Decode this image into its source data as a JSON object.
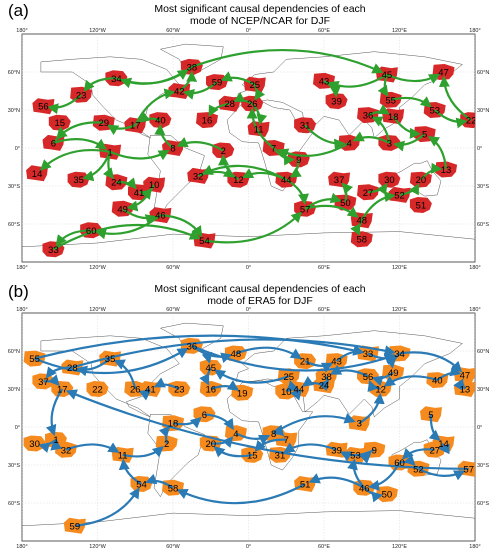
{
  "panels": [
    {
      "label": "(a)",
      "title_line1": "Most significant causal dependencies of each",
      "title_line2": "mode of NCEP/NCAR for DJF",
      "blob_color": "#d62828",
      "arrow_color": "#2ea02e",
      "nodes": [
        {
          "id": "38",
          "lon": -45,
          "lat": 64
        },
        {
          "id": "47",
          "lon": 155,
          "lat": 60
        },
        {
          "id": "45",
          "lon": 110,
          "lat": 58
        },
        {
          "id": "34",
          "lon": -105,
          "lat": 55
        },
        {
          "id": "43",
          "lon": 60,
          "lat": 53
        },
        {
          "id": "25",
          "lon": 5,
          "lat": 50
        },
        {
          "id": "59",
          "lon": -25,
          "lat": 52
        },
        {
          "id": "23",
          "lon": -133,
          "lat": 42
        },
        {
          "id": "42",
          "lon": -55,
          "lat": 45
        },
        {
          "id": "39",
          "lon": 70,
          "lat": 37
        },
        {
          "id": "55",
          "lon": 113,
          "lat": 38
        },
        {
          "id": "28",
          "lon": -15,
          "lat": 35
        },
        {
          "id": "26",
          "lon": 3,
          "lat": 35
        },
        {
          "id": "53",
          "lon": 148,
          "lat": 30
        },
        {
          "id": "56",
          "lon": -163,
          "lat": 33
        },
        {
          "id": "22",
          "lon": 177,
          "lat": 22
        },
        {
          "id": "36",
          "lon": 95,
          "lat": 26
        },
        {
          "id": "18",
          "lon": 115,
          "lat": 25
        },
        {
          "id": "15",
          "lon": -150,
          "lat": 20
        },
        {
          "id": "29",
          "lon": -115,
          "lat": 20
        },
        {
          "id": "17",
          "lon": -90,
          "lat": 18
        },
        {
          "id": "40",
          "lon": -70,
          "lat": 22
        },
        {
          "id": "16",
          "lon": -33,
          "lat": 22
        },
        {
          "id": "11",
          "lon": 8,
          "lat": 15
        },
        {
          "id": "31",
          "lon": 45,
          "lat": 18
        },
        {
          "id": "5",
          "lon": 140,
          "lat": 11
        },
        {
          "id": "6",
          "lon": -155,
          "lat": 4
        },
        {
          "id": "3",
          "lon": 112,
          "lat": 4
        },
        {
          "id": "4",
          "lon": 80,
          "lat": 4
        },
        {
          "id": "8",
          "lon": -60,
          "lat": 0
        },
        {
          "id": "2",
          "lon": -20,
          "lat": -2
        },
        {
          "id": "7",
          "lon": 20,
          "lat": 0
        },
        {
          "id": "1",
          "lon": -110,
          "lat": -3
        },
        {
          "id": "9",
          "lon": 40,
          "lat": -9
        },
        {
          "id": "13",
          "lon": 157,
          "lat": -17
        },
        {
          "id": "14",
          "lon": -168,
          "lat": -20
        },
        {
          "id": "35",
          "lon": -135,
          "lat": -25
        },
        {
          "id": "24",
          "lon": -105,
          "lat": -27
        },
        {
          "id": "32",
          "lon": -40,
          "lat": -22
        },
        {
          "id": "12",
          "lon": -8,
          "lat": -25
        },
        {
          "id": "44",
          "lon": 30,
          "lat": -25
        },
        {
          "id": "37",
          "lon": 72,
          "lat": -25
        },
        {
          "id": "30",
          "lon": 112,
          "lat": -25
        },
        {
          "id": "20",
          "lon": 137,
          "lat": -25
        },
        {
          "id": "10",
          "lon": -75,
          "lat": -29
        },
        {
          "id": "41",
          "lon": -87,
          "lat": -35
        },
        {
          "id": "27",
          "lon": 95,
          "lat": -35
        },
        {
          "id": "52",
          "lon": 120,
          "lat": -37
        },
        {
          "id": "51",
          "lon": 137,
          "lat": -45
        },
        {
          "id": "49",
          "lon": -100,
          "lat": -48
        },
        {
          "id": "46",
          "lon": -70,
          "lat": -53
        },
        {
          "id": "57",
          "lon": 45,
          "lat": -48
        },
        {
          "id": "50",
          "lon": 77,
          "lat": -43
        },
        {
          "id": "48",
          "lon": 90,
          "lat": -57
        },
        {
          "id": "60",
          "lon": -125,
          "lat": -65
        },
        {
          "id": "58",
          "lon": 90,
          "lat": -72
        },
        {
          "id": "54",
          "lon": -35,
          "lat": -73
        },
        {
          "id": "33",
          "lon": -155,
          "lat": -80
        }
      ],
      "edges": [
        [
          "38",
          "45"
        ],
        [
          "45",
          "47"
        ],
        [
          "38",
          "34"
        ],
        [
          "34",
          "23"
        ],
        [
          "23",
          "56"
        ],
        [
          "45",
          "55"
        ],
        [
          "55",
          "53"
        ],
        [
          "53",
          "22"
        ],
        [
          "43",
          "39"
        ],
        [
          "25",
          "59"
        ],
        [
          "59",
          "42"
        ],
        [
          "42",
          "38"
        ],
        [
          "25",
          "26"
        ],
        [
          "26",
          "28"
        ],
        [
          "26",
          "11"
        ],
        [
          "28",
          "16"
        ],
        [
          "36",
          "18"
        ],
        [
          "18",
          "5"
        ],
        [
          "5",
          "3"
        ],
        [
          "3",
          "4"
        ],
        [
          "4",
          "7"
        ],
        [
          "7",
          "9"
        ],
        [
          "9",
          "44"
        ],
        [
          "44",
          "12"
        ],
        [
          "12",
          "2"
        ],
        [
          "2",
          "8"
        ],
        [
          "8",
          "40"
        ],
        [
          "40",
          "17"
        ],
        [
          "17",
          "29"
        ],
        [
          "29",
          "6"
        ],
        [
          "6",
          "1"
        ],
        [
          "1",
          "14"
        ],
        [
          "1",
          "35"
        ],
        [
          "1",
          "24"
        ],
        [
          "24",
          "41"
        ],
        [
          "41",
          "10"
        ],
        [
          "10",
          "49"
        ],
        [
          "49",
          "46"
        ],
        [
          "46",
          "60"
        ],
        [
          "60",
          "33"
        ],
        [
          "46",
          "54"
        ],
        [
          "54",
          "57"
        ],
        [
          "57",
          "50"
        ],
        [
          "50",
          "37"
        ],
        [
          "57",
          "48"
        ],
        [
          "48",
          "58"
        ],
        [
          "48",
          "52"
        ],
        [
          "52",
          "20"
        ],
        [
          "20",
          "13"
        ],
        [
          "27",
          "30"
        ],
        [
          "44",
          "57"
        ],
        [
          "44",
          "32"
        ],
        [
          "32",
          "12"
        ],
        [
          "3",
          "36"
        ],
        [
          "17",
          "42"
        ],
        [
          "6",
          "15"
        ],
        [
          "7",
          "26"
        ],
        [
          "31",
          "4"
        ],
        [
          "45",
          "43"
        ],
        [
          "34",
          "38"
        ],
        [
          "22",
          "47"
        ],
        [
          "13",
          "5"
        ],
        [
          "33",
          "54"
        ],
        [
          "1",
          "8"
        ]
      ]
    },
    {
      "label": "(b)",
      "title_line1": "Most significant causal dependencies of each",
      "title_line2": "mode of ERA5 for DJF",
      "blob_color": "#f58a1e",
      "arrow_color": "#2a7ab5",
      "nodes": [
        {
          "id": "36",
          "lon": -45,
          "lat": 64
        },
        {
          "id": "34",
          "lon": 120,
          "lat": 58
        },
        {
          "id": "33",
          "lon": 95,
          "lat": 58
        },
        {
          "id": "48",
          "lon": -10,
          "lat": 58
        },
        {
          "id": "55",
          "lon": -170,
          "lat": 54
        },
        {
          "id": "35",
          "lon": -110,
          "lat": 54
        },
        {
          "id": "21",
          "lon": 45,
          "lat": 52
        },
        {
          "id": "43",
          "lon": 70,
          "lat": 52
        },
        {
          "id": "28",
          "lon": -140,
          "lat": 47
        },
        {
          "id": "45",
          "lon": -30,
          "lat": 47
        },
        {
          "id": "49",
          "lon": 115,
          "lat": 43
        },
        {
          "id": "47",
          "lon": 172,
          "lat": 41
        },
        {
          "id": "37",
          "lon": -163,
          "lat": 36
        },
        {
          "id": "25",
          "lon": 32,
          "lat": 40
        },
        {
          "id": "38",
          "lon": 62,
          "lat": 40
        },
        {
          "id": "56",
          "lon": 95,
          "lat": 40
        },
        {
          "id": "40",
          "lon": 150,
          "lat": 37
        },
        {
          "id": "24",
          "lon": 60,
          "lat": 33
        },
        {
          "id": "22",
          "lon": -120,
          "lat": 30
        },
        {
          "id": "26",
          "lon": -90,
          "lat": 30
        },
        {
          "id": "41",
          "lon": -78,
          "lat": 30
        },
        {
          "id": "23",
          "lon": -55,
          "lat": 30
        },
        {
          "id": "16",
          "lon": -30,
          "lat": 30
        },
        {
          "id": "44",
          "lon": 40,
          "lat": 30
        },
        {
          "id": "10",
          "lon": 30,
          "lat": 28
        },
        {
          "id": "12",
          "lon": 105,
          "lat": 30
        },
        {
          "id": "13",
          "lon": 172,
          "lat": 30
        },
        {
          "id": "17",
          "lon": -148,
          "lat": 30
        },
        {
          "id": "19",
          "lon": -5,
          "lat": 27
        },
        {
          "id": "5",
          "lon": 145,
          "lat": 10
        },
        {
          "id": "6",
          "lon": -35,
          "lat": 10
        },
        {
          "id": "18",
          "lon": -60,
          "lat": 3
        },
        {
          "id": "3",
          "lon": 88,
          "lat": 3
        },
        {
          "id": "8",
          "lon": 20,
          "lat": -5
        },
        {
          "id": "4",
          "lon": -10,
          "lat": -5
        },
        {
          "id": "7",
          "lon": 30,
          "lat": -10
        },
        {
          "id": "20",
          "lon": -30,
          "lat": -13
        },
        {
          "id": "2",
          "lon": -65,
          "lat": -13
        },
        {
          "id": "14",
          "lon": 155,
          "lat": -13
        },
        {
          "id": "27",
          "lon": 148,
          "lat": -18
        },
        {
          "id": "9",
          "lon": 100,
          "lat": -18
        },
        {
          "id": "39",
          "lon": 70,
          "lat": -18
        },
        {
          "id": "30",
          "lon": -170,
          "lat": -13
        },
        {
          "id": "32",
          "lon": -145,
          "lat": -18
        },
        {
          "id": "11",
          "lon": -100,
          "lat": -22
        },
        {
          "id": "15",
          "lon": 3,
          "lat": -22
        },
        {
          "id": "31",
          "lon": 25,
          "lat": -22
        },
        {
          "id": "53",
          "lon": 85,
          "lat": -22
        },
        {
          "id": "60",
          "lon": 120,
          "lat": -28
        },
        {
          "id": "52",
          "lon": 135,
          "lat": -33
        },
        {
          "id": "57",
          "lon": 175,
          "lat": -33
        },
        {
          "id": "54",
          "lon": -85,
          "lat": -45
        },
        {
          "id": "58",
          "lon": -60,
          "lat": -48
        },
        {
          "id": "51",
          "lon": 45,
          "lat": -45
        },
        {
          "id": "46",
          "lon": 92,
          "lat": -48
        },
        {
          "id": "50",
          "lon": 110,
          "lat": -53
        },
        {
          "id": "59",
          "lon": -138,
          "lat": -78
        },
        {
          "id": "1",
          "lon": -153,
          "lat": -10
        }
      ],
      "edges": [
        [
          "36",
          "45"
        ],
        [
          "36",
          "48"
        ],
        [
          "48",
          "21"
        ],
        [
          "21",
          "43"
        ],
        [
          "43",
          "33"
        ],
        [
          "33",
          "34"
        ],
        [
          "34",
          "47"
        ],
        [
          "34",
          "49"
        ],
        [
          "49",
          "56"
        ],
        [
          "56",
          "38"
        ],
        [
          "38",
          "24"
        ],
        [
          "24",
          "44"
        ],
        [
          "44",
          "10"
        ],
        [
          "10",
          "25"
        ],
        [
          "25",
          "45"
        ],
        [
          "45",
          "16"
        ],
        [
          "16",
          "19"
        ],
        [
          "23",
          "41"
        ],
        [
          "41",
          "26"
        ],
        [
          "26",
          "35"
        ],
        [
          "35",
          "28"
        ],
        [
          "28",
          "37"
        ],
        [
          "37",
          "17"
        ],
        [
          "17",
          "1"
        ],
        [
          "1",
          "30"
        ],
        [
          "1",
          "32"
        ],
        [
          "32",
          "11"
        ],
        [
          "11",
          "2"
        ],
        [
          "2",
          "18"
        ],
        [
          "18",
          "6"
        ],
        [
          "6",
          "4"
        ],
        [
          "4",
          "8"
        ],
        [
          "8",
          "7"
        ],
        [
          "7",
          "15"
        ],
        [
          "15",
          "20"
        ],
        [
          "20",
          "4"
        ],
        [
          "8",
          "3"
        ],
        [
          "3",
          "12"
        ],
        [
          "12",
          "56"
        ],
        [
          "5",
          "14"
        ],
        [
          "14",
          "27"
        ],
        [
          "27",
          "60"
        ],
        [
          "60",
          "52"
        ],
        [
          "52",
          "57"
        ],
        [
          "60",
          "46"
        ],
        [
          "46",
          "51"
        ],
        [
          "51",
          "58"
        ],
        [
          "58",
          "54"
        ],
        [
          "54",
          "11"
        ],
        [
          "46",
          "50"
        ],
        [
          "46",
          "53"
        ],
        [
          "53",
          "9"
        ],
        [
          "9",
          "39"
        ],
        [
          "39",
          "31"
        ],
        [
          "40",
          "47"
        ],
        [
          "40",
          "12"
        ],
        [
          "13",
          "47"
        ],
        [
          "36",
          "34"
        ],
        [
          "55",
          "33"
        ],
        [
          "55",
          "36"
        ],
        [
          "28",
          "34"
        ],
        [
          "59",
          "54"
        ],
        [
          "57",
          "17"
        ]
      ]
    }
  ],
  "lon_ticks": [
    "180°",
    "120°W",
    "60°W",
    "0°",
    "60°E",
    "120°E",
    "180°"
  ],
  "lat_ticks": [
    "60°N",
    "30°N",
    "0°",
    "30°S",
    "60°S"
  ]
}
